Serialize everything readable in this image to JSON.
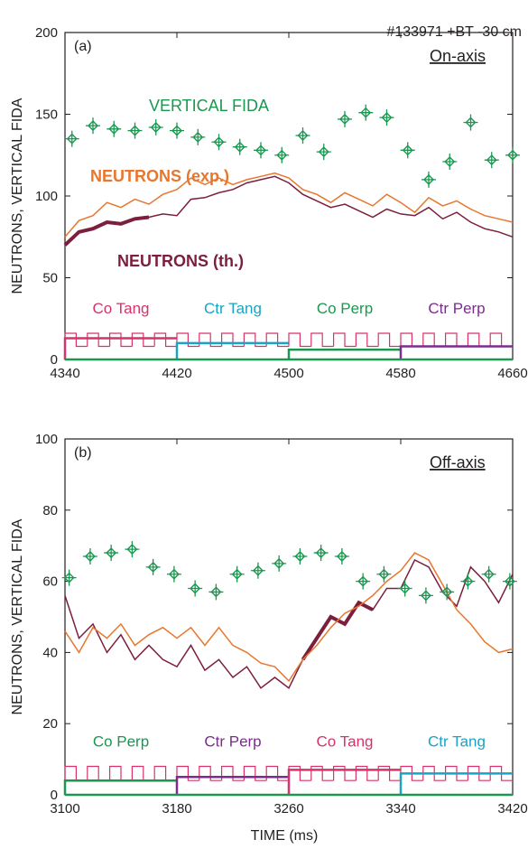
{
  "figure": {
    "shot_label": "#133971 +BT -30 cm",
    "x_label": "TIME (ms)"
  },
  "colors": {
    "fida": "#1a9850",
    "neutrons_exp": "#e8772e",
    "neutrons_th": "#7b1f3c",
    "co_tang": "#d6336c",
    "ctr_tang": "#1ba3c6",
    "co_perp": "#1a9850",
    "ctr_perp": "#7b2d8e",
    "axis": "#231f20"
  },
  "chart_data": [
    {
      "type": "line",
      "panel": "(a)",
      "location": "On-axis",
      "ylabel": "NEUTRONS, VERTICAL FIDA",
      "xlim": [
        4340,
        4660
      ],
      "ylim": [
        0,
        200
      ],
      "xticks": [
        4340,
        4420,
        4500,
        4580,
        4660
      ],
      "yticks": [
        0,
        50,
        100,
        150,
        200
      ],
      "annotations": {
        "fida": "VERTICAL FIDA",
        "neutrons_exp": "NEUTRONS (exp.)",
        "neutrons_th": "NEUTRONS (th.)"
      },
      "fida": {
        "x": [
          4345,
          4360,
          4375,
          4390,
          4405,
          4420,
          4435,
          4450,
          4465,
          4480,
          4495,
          4510,
          4525,
          4540,
          4555,
          4570,
          4585,
          4600,
          4615,
          4630,
          4645,
          4660
        ],
        "y": [
          135,
          143,
          141,
          140,
          142,
          140,
          136,
          133,
          130,
          128,
          125,
          137,
          127,
          147,
          151,
          148,
          128,
          110,
          121,
          145,
          122,
          125
        ]
      },
      "neutrons_exp": {
        "x": [
          4340,
          4350,
          4360,
          4370,
          4380,
          4390,
          4400,
          4410,
          4420,
          4430,
          4440,
          4450,
          4460,
          4470,
          4480,
          4490,
          4500,
          4510,
          4520,
          4530,
          4540,
          4550,
          4560,
          4570,
          4580,
          4590,
          4600,
          4610,
          4620,
          4630,
          4640,
          4650,
          4660
        ],
        "y": [
          75,
          85,
          88,
          96,
          93,
          98,
          95,
          101,
          104,
          111,
          107,
          111,
          107,
          110,
          112,
          114,
          111,
          104,
          101,
          96,
          102,
          98,
          94,
          101,
          96,
          90,
          99,
          94,
          97,
          92,
          88,
          86,
          84
        ]
      },
      "neutrons_th": {
        "x": [
          4340,
          4350,
          4360,
          4370,
          4380,
          4390,
          4400,
          4410,
          4420,
          4430,
          4440,
          4450,
          4460,
          4470,
          4480,
          4490,
          4500,
          4510,
          4520,
          4530,
          4540,
          4550,
          4560,
          4570,
          4580,
          4590,
          4600,
          4610,
          4620,
          4630,
          4640,
          4650,
          4660
        ],
        "y": [
          70,
          78,
          80,
          84,
          83,
          86,
          87,
          89,
          88,
          98,
          99,
          102,
          104,
          108,
          110,
          112,
          108,
          101,
          97,
          93,
          95,
          91,
          87,
          92,
          89,
          88,
          93,
          86,
          90,
          84,
          80,
          78,
          75
        ]
      },
      "neutrons_th_thick_xmax": 4405,
      "beams": [
        {
          "label": "Co Tang",
          "start": 4340,
          "end": 4420,
          "level": 13,
          "color_key": "co_tang"
        },
        {
          "label": "Ctr Tang",
          "start": 4420,
          "end": 4500,
          "level": 10,
          "color_key": "ctr_tang"
        },
        {
          "label": "Co Perp",
          "start": 4500,
          "end": 4580,
          "level": 6,
          "color_key": "co_perp"
        },
        {
          "label": "Ctr Perp",
          "start": 4580,
          "end": 4660,
          "level": 8,
          "color_key": "ctr_perp"
        }
      ],
      "square_wave": {
        "period": 16,
        "duty": 0.5,
        "high": 16,
        "low": 8
      }
    },
    {
      "type": "line",
      "panel": "(b)",
      "location": "Off-axis",
      "ylabel": "NEUTRONS, VERTICAL FIDA",
      "xlim": [
        3100,
        3420
      ],
      "ylim": [
        0,
        100
      ],
      "xticks": [
        3100,
        3180,
        3260,
        3340,
        3420
      ],
      "yticks": [
        0,
        20,
        40,
        60,
        80,
        100
      ],
      "fida": {
        "x": [
          3103,
          3118,
          3133,
          3148,
          3163,
          3178,
          3193,
          3208,
          3223,
          3238,
          3253,
          3268,
          3283,
          3298,
          3313,
          3328,
          3343,
          3358,
          3373,
          3388,
          3403,
          3418
        ],
        "y": [
          61,
          67,
          68,
          69,
          64,
          62,
          58,
          57,
          62,
          63,
          65,
          67,
          68,
          67,
          60,
          62,
          58,
          56,
          57,
          60,
          62,
          60
        ]
      },
      "neutrons_exp": {
        "x": [
          3100,
          3110,
          3120,
          3130,
          3140,
          3150,
          3160,
          3170,
          3180,
          3190,
          3200,
          3210,
          3220,
          3230,
          3240,
          3250,
          3260,
          3270,
          3280,
          3290,
          3300,
          3310,
          3320,
          3330,
          3340,
          3350,
          3360,
          3370,
          3380,
          3390,
          3400,
          3410,
          3420
        ],
        "y": [
          46,
          40,
          47,
          44,
          48,
          42,
          45,
          47,
          44,
          47,
          42,
          47,
          42,
          40,
          37,
          36,
          32,
          38,
          42,
          47,
          51,
          53,
          56,
          60,
          63,
          68,
          66,
          59,
          52,
          48,
          43,
          40,
          41
        ]
      },
      "neutrons_th": {
        "x": [
          3100,
          3110,
          3120,
          3130,
          3140,
          3150,
          3160,
          3170,
          3180,
          3190,
          3200,
          3210,
          3220,
          3230,
          3240,
          3250,
          3260,
          3270,
          3280,
          3290,
          3300,
          3310,
          3320,
          3330,
          3340,
          3350,
          3360,
          3370,
          3380,
          3390,
          3400,
          3410,
          3420
        ],
        "y": [
          56,
          44,
          48,
          40,
          45,
          38,
          42,
          38,
          36,
          42,
          35,
          38,
          33,
          36,
          30,
          33,
          30,
          38,
          44,
          50,
          48,
          54,
          52,
          58,
          58,
          66,
          64,
          57,
          53,
          64,
          60,
          54,
          62
        ]
      },
      "neutrons_th_thick_xrange": [
        3265,
        3320
      ],
      "beams": [
        {
          "label": "Co Perp",
          "start": 3100,
          "end": 3180,
          "level": 4,
          "color_key": "co_perp"
        },
        {
          "label": "Ctr Perp",
          "start": 3180,
          "end": 3260,
          "level": 5,
          "color_key": "ctr_perp"
        },
        {
          "label": "Co Tang",
          "start": 3260,
          "end": 3340,
          "level": 7,
          "color_key": "co_tang"
        },
        {
          "label": "Ctr Tang",
          "start": 3340,
          "end": 3420,
          "level": 6,
          "color_key": "ctr_tang"
        }
      ],
      "square_wave": {
        "period": 16,
        "duty": 0.5,
        "high": 8,
        "low": 4
      }
    }
  ]
}
